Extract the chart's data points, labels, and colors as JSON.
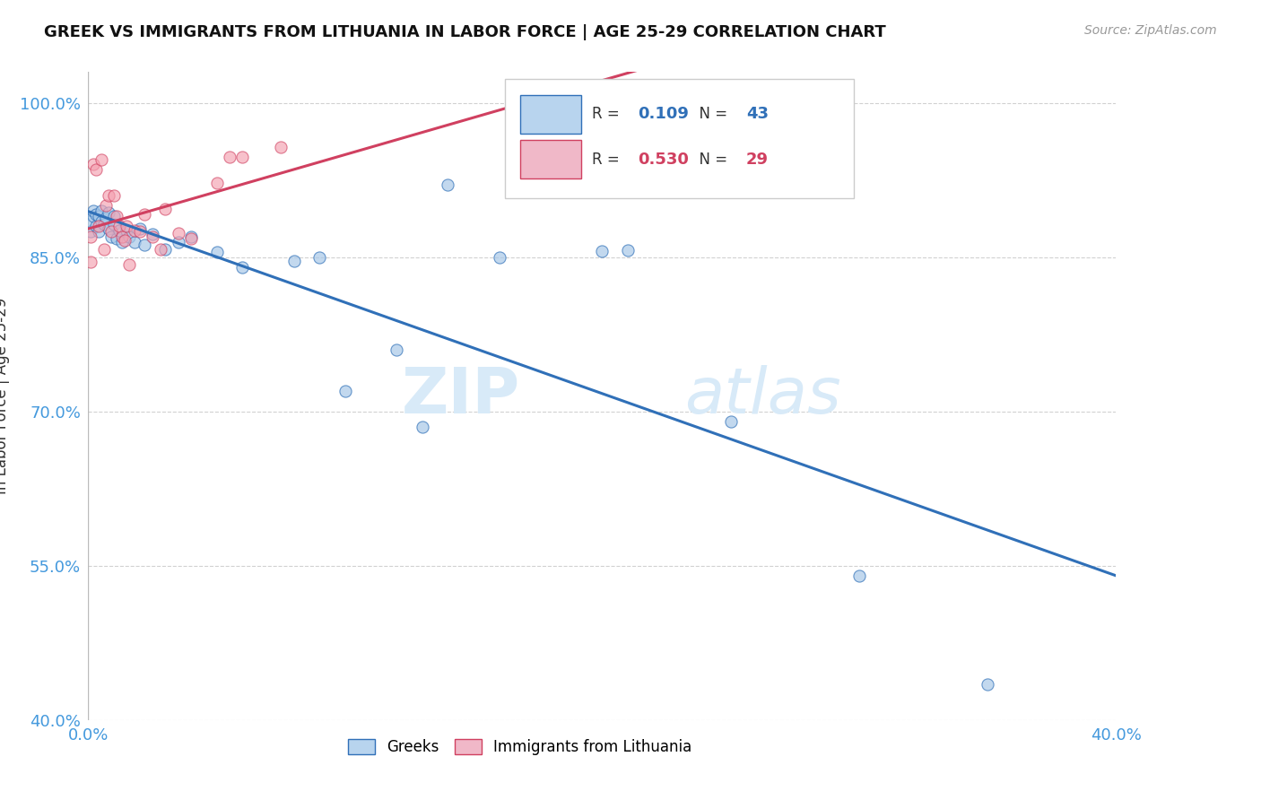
{
  "title": "GREEK VS IMMIGRANTS FROM LITHUANIA IN LABOR FORCE | AGE 25-29 CORRELATION CHART",
  "source": "Source: ZipAtlas.com",
  "ylabel": "In Labor Force | Age 25-29",
  "watermark": "ZIPatlas",
  "xlim": [
    0.0,
    0.4
  ],
  "ylim": [
    0.4,
    1.03
  ],
  "yticks": [
    1.0,
    0.85,
    0.7,
    0.55,
    0.4
  ],
  "ytick_labels": [
    "100.0%",
    "85.0%",
    "70.0%",
    "55.0%",
    "40.0%"
  ],
  "xticks": [
    0.0,
    0.1,
    0.2,
    0.3,
    0.4
  ],
  "xtick_labels": [
    "0.0%",
    "",
    "",
    "",
    "40.0%"
  ],
  "blue_R": "0.109",
  "blue_N": "43",
  "pink_R": "0.530",
  "pink_N": "29",
  "blue_color": "#a8c8e8",
  "pink_color": "#f4a0b0",
  "blue_line_color": "#3070b8",
  "pink_line_color": "#d04060",
  "background_color": "#ffffff",
  "grid_color": "#cccccc",
  "axis_color": "#4499dd",
  "title_color": "#111111",
  "source_color": "#999999",
  "watermark_color": "#d8eaf8",
  "blue_scatter_x": [
    0.001,
    0.001,
    0.002,
    0.002,
    0.003,
    0.003,
    0.004,
    0.004,
    0.005,
    0.005,
    0.006,
    0.007,
    0.008,
    0.008,
    0.009,
    0.01,
    0.01,
    0.011,
    0.012,
    0.013,
    0.015,
    0.016,
    0.018,
    0.02,
    0.022,
    0.025,
    0.03,
    0.035,
    0.04,
    0.05,
    0.06,
    0.08,
    0.09,
    0.1,
    0.12,
    0.13,
    0.14,
    0.16,
    0.2,
    0.21,
    0.25,
    0.3,
    0.35
  ],
  "blue_scatter_y": [
    0.875,
    0.885,
    0.89,
    0.895,
    0.88,
    0.892,
    0.875,
    0.89,
    0.885,
    0.895,
    0.882,
    0.888,
    0.878,
    0.893,
    0.87,
    0.882,
    0.89,
    0.868,
    0.876,
    0.865,
    0.876,
    0.87,
    0.865,
    0.878,
    0.862,
    0.872,
    0.858,
    0.865,
    0.87,
    0.855,
    0.84,
    0.846,
    0.85,
    0.72,
    0.76,
    0.685,
    0.92,
    0.85,
    0.856,
    0.857,
    0.69,
    0.54,
    0.435
  ],
  "pink_scatter_x": [
    0.001,
    0.001,
    0.002,
    0.003,
    0.004,
    0.005,
    0.006,
    0.007,
    0.008,
    0.009,
    0.01,
    0.011,
    0.012,
    0.013,
    0.014,
    0.015,
    0.016,
    0.018,
    0.02,
    0.022,
    0.025,
    0.028,
    0.03,
    0.035,
    0.04,
    0.05,
    0.055,
    0.06,
    0.075
  ],
  "pink_scatter_y": [
    0.845,
    0.87,
    0.94,
    0.935,
    0.88,
    0.945,
    0.858,
    0.9,
    0.91,
    0.875,
    0.91,
    0.89,
    0.88,
    0.87,
    0.866,
    0.88,
    0.843,
    0.876,
    0.875,
    0.892,
    0.87,
    0.858,
    0.897,
    0.873,
    0.868,
    0.922,
    0.947,
    0.947,
    0.957
  ],
  "blue_scatter_size": 90,
  "pink_scatter_size": 90,
  "legend_box_color_blue": "#b8d4ee",
  "legend_box_color_pink": "#f0b8c8"
}
